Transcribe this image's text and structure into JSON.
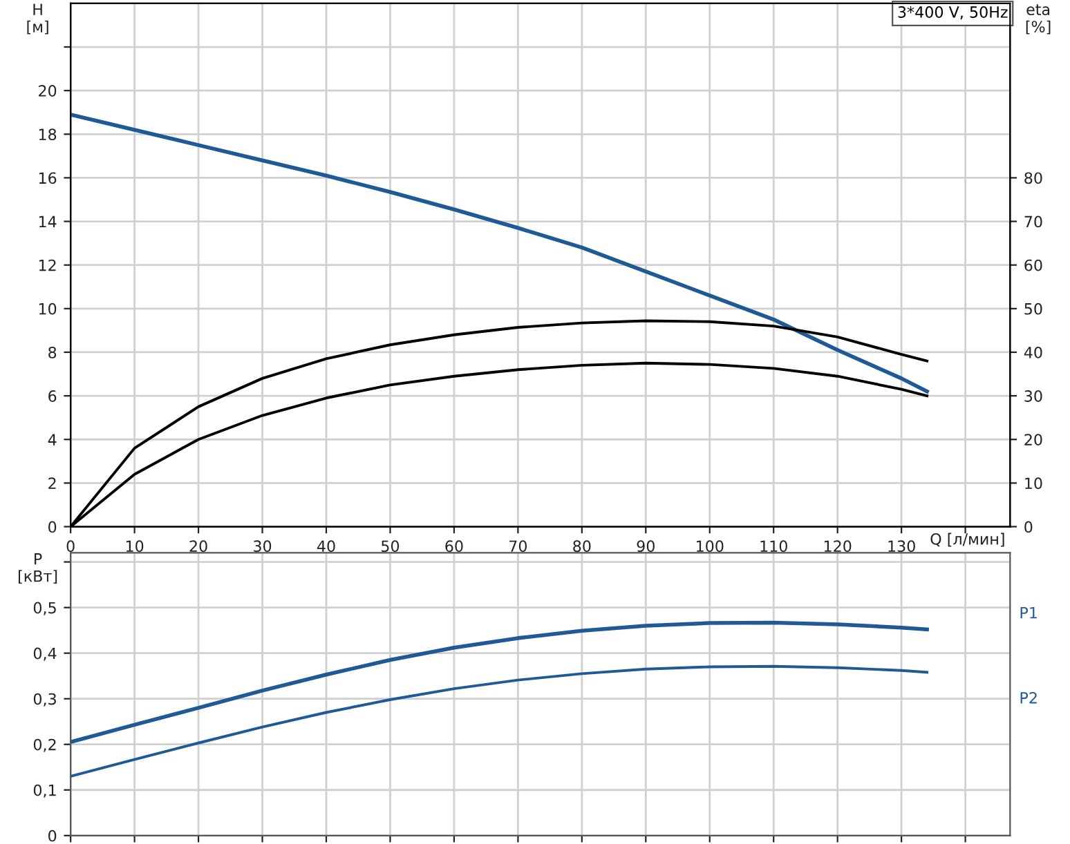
{
  "chart_data": [
    {
      "type": "line",
      "ylabel": "H\n[м]",
      "y2label": "eta\n[%]",
      "xlabel": "Q [л/мин]",
      "annotations": [
        "3*400 V, 50Hz"
      ],
      "x": [
        0,
        10,
        20,
        30,
        40,
        50,
        60,
        70,
        80,
        90,
        100,
        110,
        120,
        130,
        134
      ],
      "xlim": [
        0,
        147
      ],
      "xticks": [
        0,
        10,
        20,
        30,
        40,
        50,
        60,
        70,
        80,
        90,
        100,
        110,
        120,
        130,
        {
          "value": 140,
          "label": null
        }
      ],
      "ylim": [
        0,
        24
      ],
      "yticks": [
        0,
        2,
        4,
        6,
        8,
        10,
        12,
        14,
        16,
        18,
        20,
        {
          "value": 22,
          "label": null
        }
      ],
      "y2lim": [
        0,
        120
      ],
      "y2ticks": [
        0,
        10,
        20,
        30,
        40,
        50,
        60,
        70,
        80
      ],
      "grid": true,
      "legend": false,
      "marker": "none",
      "line_style": "solid",
      "series": [
        {
          "color": "#1f5a96",
          "values": [
            18.9,
            18.2,
            17.5,
            16.8,
            16.1,
            15.35,
            14.55,
            13.7,
            12.8,
            11.7,
            10.6,
            9.5,
            8.1,
            6.8,
            6.2
          ]
        },
        {
          "color": "#000000",
          "axis": "y2",
          "values": [
            0,
            18,
            27.5,
            34,
            38.5,
            41.7,
            44,
            45.7,
            46.7,
            47.2,
            47,
            46,
            43.5,
            39.5,
            38
          ]
        },
        {
          "color": "#000000",
          "axis": "y2",
          "values": [
            0,
            12,
            20,
            25.5,
            29.5,
            32.5,
            34.5,
            36,
            37,
            37.5,
            37.2,
            36.3,
            34.5,
            31.5,
            30
          ]
        }
      ]
    },
    {
      "type": "line",
      "ylabel": "P\n[кВт]",
      "tick_labels": "y",
      "x": [
        0,
        10,
        20,
        30,
        40,
        50,
        60,
        70,
        80,
        90,
        100,
        110,
        120,
        130,
        134
      ],
      "xlim": [
        0,
        147
      ],
      "xticks": [
        0,
        10,
        20,
        30,
        40,
        50,
        60,
        70,
        80,
        90,
        100,
        110,
        120,
        130,
        140
      ],
      "ylim": [
        0,
        0.62
      ],
      "yticks": [
        0,
        {
          "value": 0.1,
          "label": "0,1"
        },
        {
          "value": 0.2,
          "label": "0,2"
        },
        {
          "value": 0.3,
          "label": "0,3"
        },
        {
          "value": 0.4,
          "label": "0,4"
        },
        {
          "value": 0.5,
          "label": "0,5"
        },
        {
          "value": 0.6,
          "label": null
        }
      ],
      "grid": true,
      "legend": false,
      "marker": "none",
      "line_style": "solid",
      "series": [
        {
          "name": "P1",
          "color": "#1f5a96",
          "values": [
            0.205,
            0.243,
            0.28,
            0.318,
            0.353,
            0.385,
            0.412,
            0.433,
            0.449,
            0.46,
            0.466,
            0.467,
            0.463,
            0.456,
            0.452
          ]
        },
        {
          "name": "P2",
          "color": "#1f5a96",
          "values": [
            0.13,
            0.167,
            0.203,
            0.238,
            0.27,
            0.298,
            0.322,
            0.341,
            0.355,
            0.365,
            0.37,
            0.371,
            0.368,
            0.362,
            0.358
          ]
        }
      ]
    }
  ]
}
